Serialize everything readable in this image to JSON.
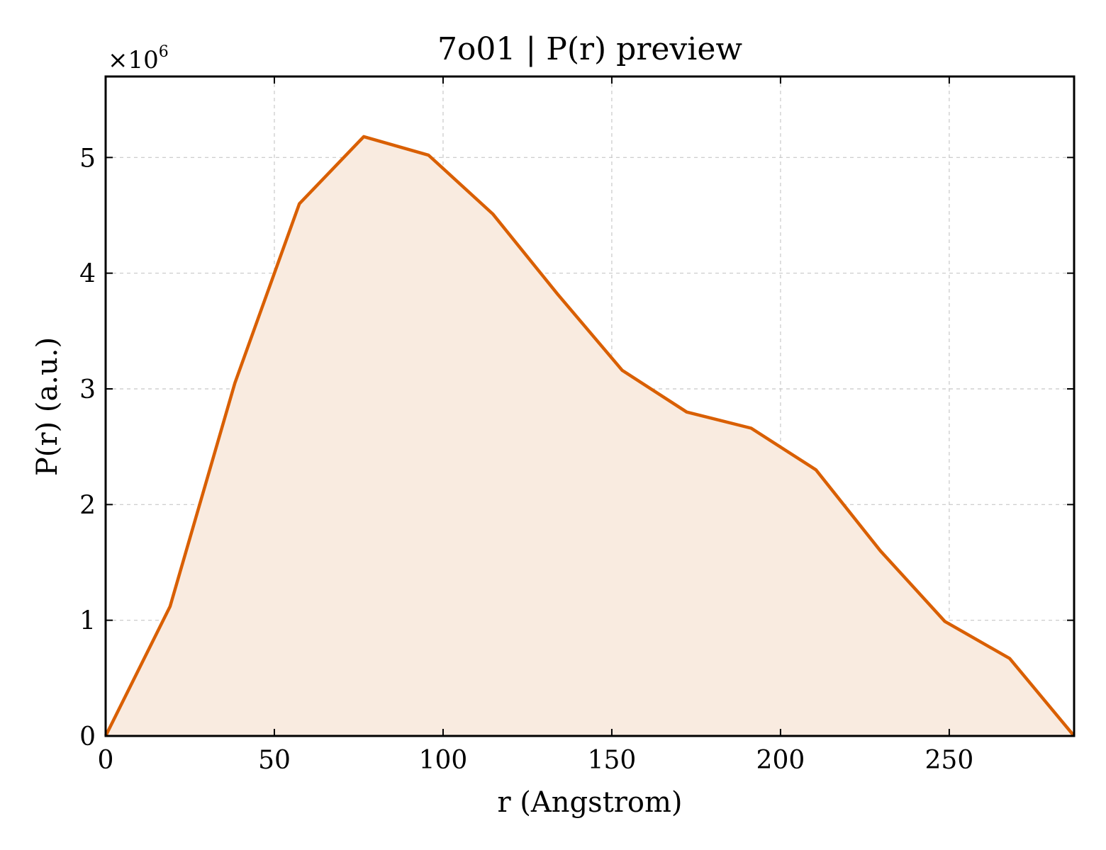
{
  "chart_data": {
    "type": "area",
    "title": "7o01 | P(r) preview",
    "xlabel": "r (Angstrom)",
    "ylabel": "P(r) (a.u.)",
    "y_multiplier": {
      "base": "×10",
      "exponent": "6"
    },
    "xlim": [
      0,
      287
    ],
    "ylim": [
      0,
      5.7
    ],
    "x_ticks": [
      0,
      50,
      100,
      150,
      200,
      250
    ],
    "y_ticks": [
      0,
      1,
      2,
      3,
      4,
      5
    ],
    "grid": true,
    "line_color": "#d95f02",
    "fill_color": "#f9ebe0",
    "series": [
      {
        "x": [
          0,
          19.1,
          38.3,
          57.4,
          76.5,
          95.7,
          114.8,
          133.9,
          153.1,
          172.2,
          191.3,
          210.5,
          229.6,
          248.7,
          267.9,
          287
        ],
        "y": [
          0,
          1.12,
          3.05,
          4.6,
          5.18,
          5.02,
          4.51,
          3.82,
          3.16,
          2.8,
          2.66,
          2.3,
          1.6,
          0.99,
          0.67,
          0
        ]
      }
    ]
  }
}
